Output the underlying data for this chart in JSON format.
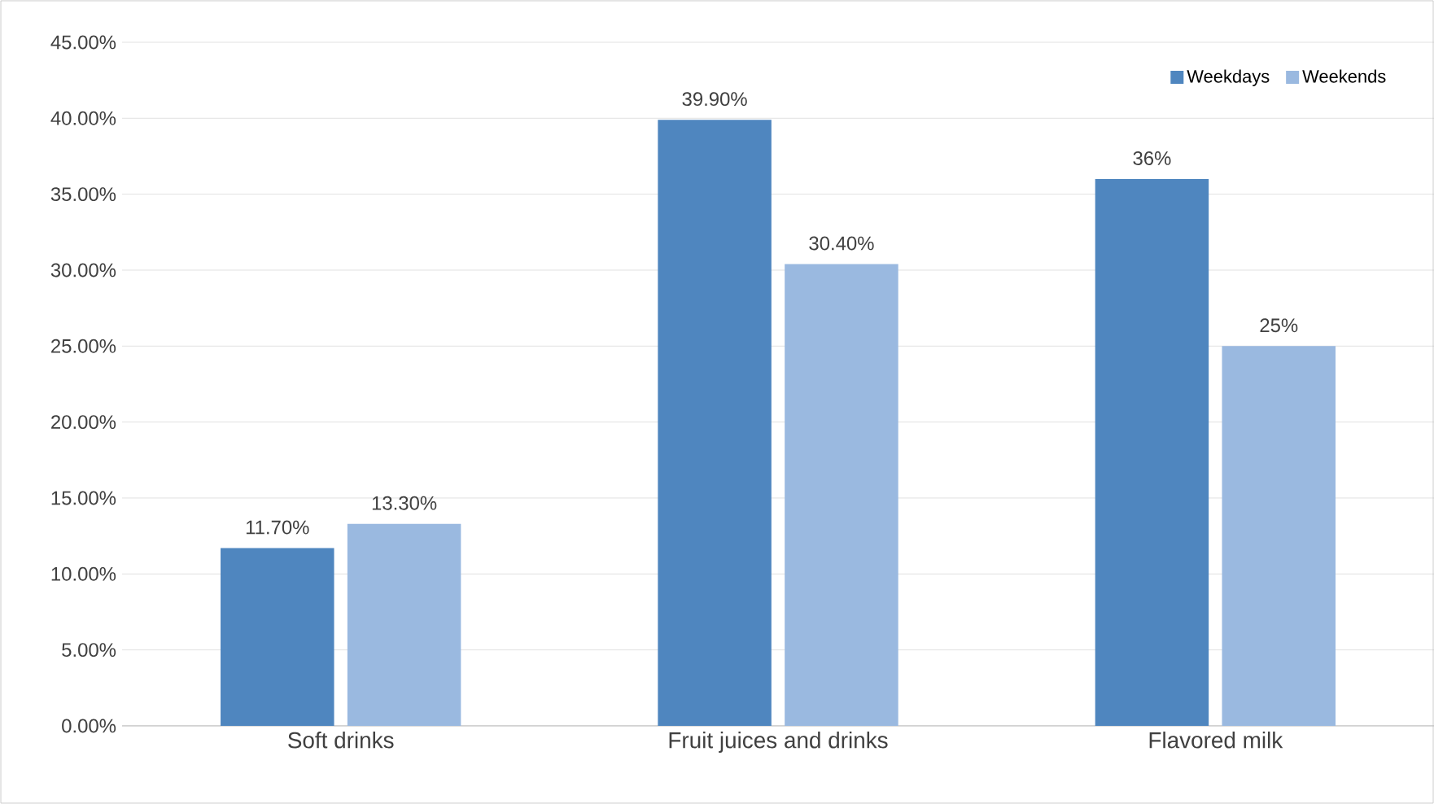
{
  "chart_data": {
    "type": "bar",
    "categories": [
      "Soft drinks",
      "Fruit juices and drinks",
      "Flavored milk"
    ],
    "series": [
      {
        "name": "Weekdays",
        "color": "#4f86bf",
        "values": [
          11.7,
          39.9,
          36
        ],
        "value_labels": [
          "11.70%",
          "39.90%",
          "36%"
        ]
      },
      {
        "name": "Weekends",
        "color": "#9ab9e0",
        "values": [
          13.3,
          30.4,
          25
        ],
        "value_labels": [
          "13.30%",
          "30.40%",
          "25%"
        ]
      }
    ],
    "ylim": [
      0,
      45
    ],
    "yticks": [
      {
        "value": 0,
        "label": "0.00%"
      },
      {
        "value": 5,
        "label": "5.00%"
      },
      {
        "value": 10,
        "label": "10.00%"
      },
      {
        "value": 15,
        "label": "15.00%"
      },
      {
        "value": 20,
        "label": "20.00%"
      },
      {
        "value": 25,
        "label": "25.00%"
      },
      {
        "value": 30,
        "label": "30.00%"
      },
      {
        "value": 35,
        "label": "35.00%"
      },
      {
        "value": 40,
        "label": "40.00%"
      },
      {
        "value": 45,
        "label": "45.00%"
      }
    ],
    "grid": "y",
    "legend": "top right"
  }
}
